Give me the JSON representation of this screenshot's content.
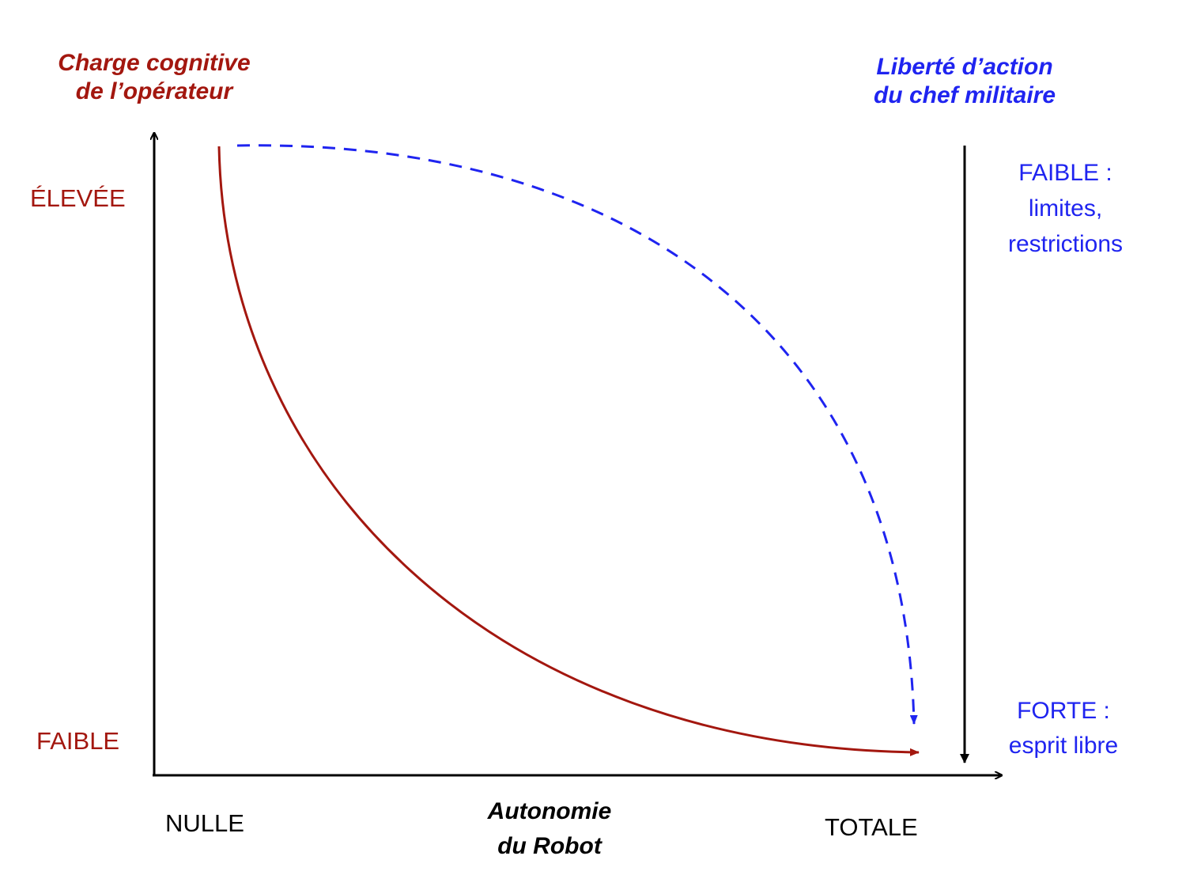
{
  "left_axis": {
    "title_line1": "Charge cognitive",
    "title_line2": "de l’opérateur",
    "high_label": "ÉLEVÉE",
    "low_label": "FAIBLE"
  },
  "right_axis": {
    "title_line1": "Liberté d’action",
    "title_line2": "du chef militaire",
    "top_label_line1": "FAIBLE :",
    "top_label_line2": "limites,",
    "top_label_line3": "restrictions",
    "bottom_label_line1": "FORTE :",
    "bottom_label_line2": "esprit libre"
  },
  "x_axis": {
    "title_line1": "Autonomie",
    "title_line2": "du Robot",
    "min_label": "NULLE",
    "max_label": "TOTALE"
  },
  "colors": {
    "cognitive_load": "#a3170f",
    "freedom": "#1f24f0",
    "axes": "#000000"
  }
}
